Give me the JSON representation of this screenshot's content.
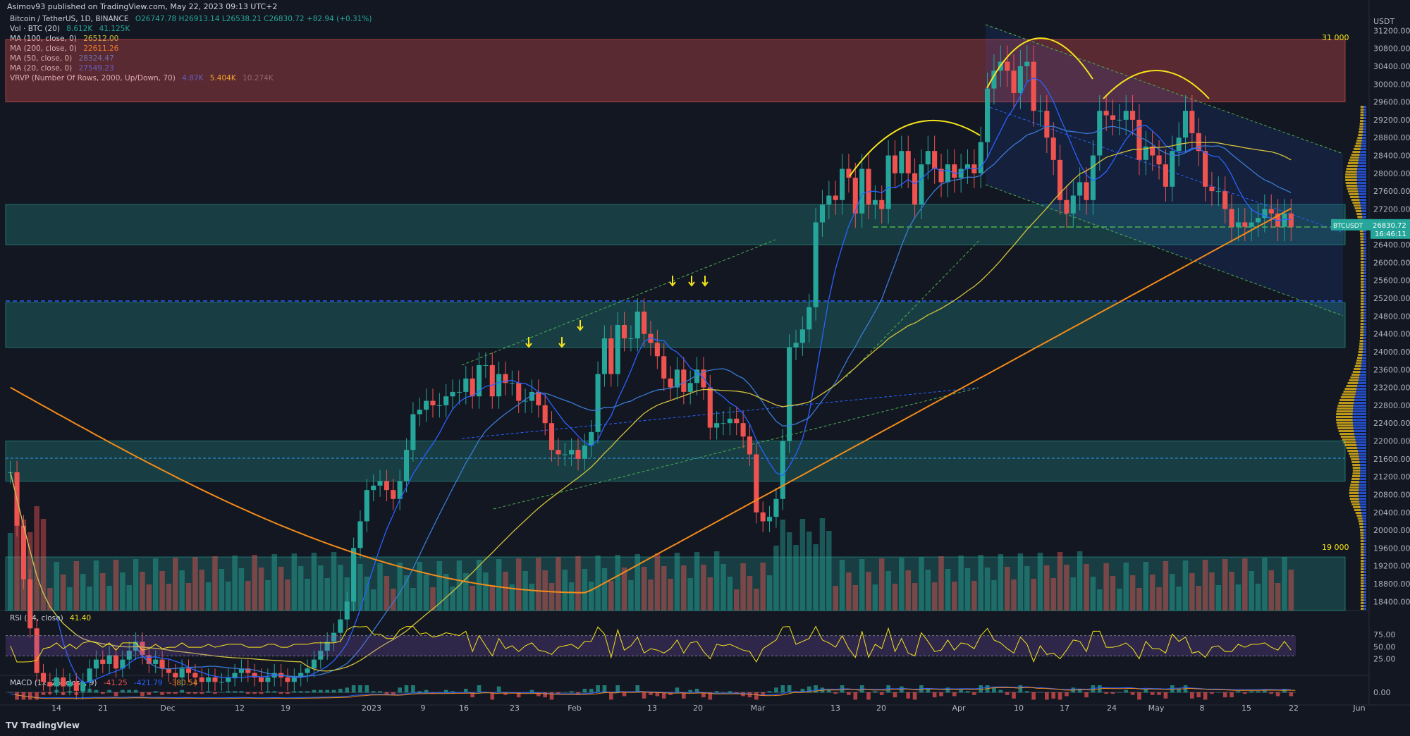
{
  "attribution": "Asimov93 published on TradingView.com, May 22, 2023 09:13 UTC+2",
  "legend": {
    "symbol": "Bitcoin / TetherUS, 1D, BINANCE",
    "ohlc": "O26747.78 H26913.14 L26538.21 C26830.72 +82.94 (+0.31%)",
    "vol_label": "Vol · BTC (20)",
    "vol_v1": "8.612K",
    "vol_v2": "41.125K",
    "ma100_label": "MA (100, close, 0)",
    "ma100_val": "26512.00",
    "ma200_label": "MA (200, close, 0)",
    "ma200_val": "22611.26",
    "ma50_label": "MA (50, close, 0)",
    "ma50_val": "28324.47",
    "ma20_label": "MA (20, close, 0)",
    "ma20_val": "27549.23",
    "vrvp_label": "VRVP (Number Of Rows, 2000, Up/Down, 70)",
    "vrvp_v1": "4.87K",
    "vrvp_v2": "5.404K",
    "vrvp_v3": "10.274K",
    "rsi_label": "RSI (14, close)",
    "rsi_val": "41.40",
    "macd_label": "MACD (12, 26, close, 9)",
    "macd_v1": "-41.25",
    "macd_v2": "-421.79",
    "macd_v3": "-380.54"
  },
  "price_axis": {
    "unit": "USDT",
    "ticks": [
      "31200.00",
      "30800.00",
      "30400.00",
      "30000.00",
      "29600.00",
      "29200.00",
      "28800.00",
      "28400.00",
      "28000.00",
      "27600.00",
      "27200.00",
      "26800.00",
      "26400.00",
      "26000.00",
      "25600.00",
      "25200.00",
      "24800.00",
      "24400.00",
      "24000.00",
      "23600.00",
      "23200.00",
      "22800.00",
      "22400.00",
      "22000.00",
      "21600.00",
      "21200.00",
      "20800.00",
      "20400.00",
      "20000.00",
      "19600.00",
      "19200.00",
      "18800.00",
      "18400.00"
    ],
    "current_label": "BTCUSDT",
    "current_price": "26830.72",
    "countdown": "16:46:11"
  },
  "annotations": {
    "level_high": "31 000",
    "level_low": "19 000"
  },
  "rsi_axis": [
    "75.00",
    "50.00",
    "25.00"
  ],
  "macd_axis": [
    "0.00"
  ],
  "time_axis": [
    "14",
    "21",
    "Dec",
    "12",
    "19",
    "2023",
    "9",
    "16",
    "23",
    "Feb",
    "13",
    "20",
    "Mar",
    "13",
    "20",
    "Apr",
    "10",
    "17",
    "24",
    "May",
    "8",
    "15",
    "22",
    "Jun"
  ],
  "tv_brand": "TradingView",
  "colors": {
    "up": "#26a69a",
    "down": "#ef5350",
    "ma100": "#d4c23c",
    "ma200": "#f28b1a",
    "ma50": "#3a7bd5",
    "ma20": "#2962ff",
    "annot": "#f5e31b"
  },
  "chart_data": {
    "type": "candlestick",
    "title": "Bitcoin / TetherUS, 1D, BINANCE",
    "ylabel": "USDT",
    "ylim": [
      18200,
      31600
    ],
    "zones": [
      {
        "name": "resistance",
        "from": 29600,
        "to": 31000,
        "color": "#ef5350"
      },
      {
        "name": "support1",
        "from": 26400,
        "to": 27300,
        "color": "#26a69a"
      },
      {
        "name": "support2",
        "from": 24100,
        "to": 25100,
        "color": "#26a69a"
      },
      {
        "name": "support3",
        "from": 21100,
        "to": 22000,
        "color": "#26a69a"
      },
      {
        "name": "support4",
        "from": 18200,
        "to": 19400,
        "color": "#26a69a"
      }
    ],
    "closes": [
      21300,
      20100,
      18900,
      17800,
      16800,
      16600,
      16500,
      16700,
      16500,
      16600,
      16400,
      16600,
      16900,
      17100,
      17000,
      17200,
      16900,
      17100,
      17300,
      17500,
      17200,
      17000,
      17100,
      16900,
      16800,
      16700,
      16900,
      16800,
      16700,
      16600,
      16700,
      16600,
      16600,
      16700,
      16800,
      16900,
      16800,
      16700,
      16600,
      16700,
      16800,
      16700,
      16600,
      16700,
      16800,
      16900,
      17100,
      17300,
      17500,
      17700,
      18000,
      18400,
      19600,
      20200,
      20900,
      21000,
      21100,
      20900,
      20700,
      21100,
      21800,
      22600,
      22700,
      22900,
      22800,
      22800,
      23000,
      23100,
      23100,
      23400,
      23000,
      23700,
      23700,
      23000,
      23500,
      23300,
      23300,
      22900,
      22900,
      23100,
      22800,
      22400,
      21800,
      21700,
      21700,
      21800,
      21600,
      21900,
      22200,
      23500,
      24300,
      23500,
      24600,
      24300,
      24300,
      24900,
      24400,
      24200,
      23900,
      23400,
      23200,
      23600,
      23100,
      23300,
      23600,
      23200,
      22300,
      22400,
      22400,
      22500,
      22400,
      22100,
      21700,
      20400,
      20200,
      20300,
      20700,
      22000,
      24100,
      24200,
      24500,
      25000,
      26900,
      27300,
      27500,
      27400,
      28100,
      27900,
      27100,
      28100,
      27300,
      27400,
      27200,
      28400,
      28000,
      28500,
      28000,
      27300,
      28200,
      28500,
      28100,
      27800,
      28200,
      27900,
      28100,
      28200,
      28000,
      28700,
      29900,
      30300,
      30500,
      30300,
      29800,
      30400,
      30500,
      29400,
      29400,
      28800,
      28300,
      27400,
      27100,
      27500,
      27800,
      27400,
      28400,
      29400,
      29300,
      29200,
      29200,
      29400,
      29200,
      28300,
      28600,
      28400,
      28200,
      27700,
      28500,
      28800,
      29400,
      28900,
      28500,
      27700,
      27600,
      27600,
      27200,
      26800,
      26900,
      26800,
      26900,
      27000,
      27200,
      27100,
      26800,
      27100,
      26800
    ],
    "ma100_end": 26512.0,
    "ma200_end": 22611.26,
    "ma50_end": 28324.47,
    "ma20_end": 27549.23,
    "rsi": {
      "ylim": [
        0,
        100
      ],
      "levels": [
        70,
        30
      ],
      "last": 41.4
    },
    "macd": {
      "values": [
        -41.25,
        -421.79,
        -380.54
      ]
    }
  }
}
